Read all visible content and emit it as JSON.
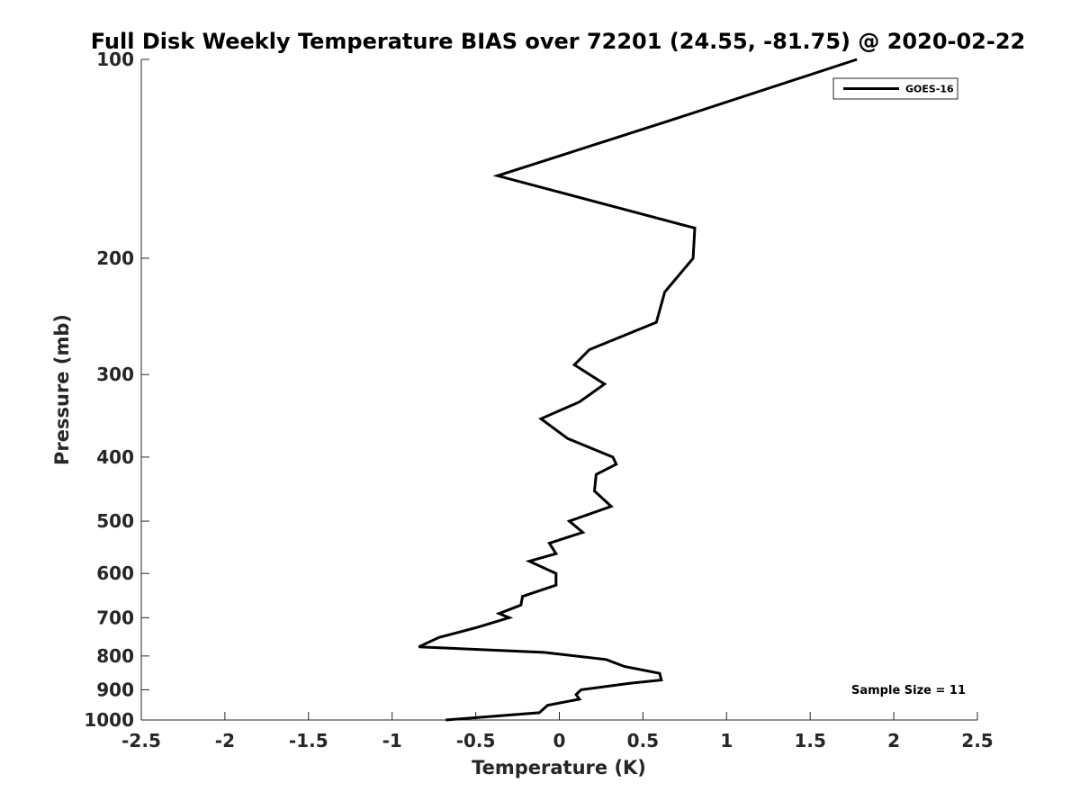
{
  "chart_data": {
    "type": "line",
    "title": "Full Disk Weekly Temperature BIAS over 72201 (24.55, -81.75) @ 2020-02-22",
    "xlabel": "Temperature (K)",
    "ylabel": "Pressure (mb)",
    "xlim": [
      -2.5,
      2.5
    ],
    "ylim": [
      100,
      1000
    ],
    "y_scale": "log",
    "y_reversed": true,
    "grid": false,
    "legend_position": "top-right",
    "x_ticks": [
      -2.5,
      -2,
      -1.5,
      -1,
      -0.5,
      0,
      0.5,
      1,
      1.5,
      2,
      2.5
    ],
    "x_tick_labels": [
      "-2.5",
      "-2",
      "-1.5",
      "-1",
      "-0.5",
      "0",
      "0.5",
      "1",
      "1.5",
      "2",
      "2.5"
    ],
    "y_ticks": [
      100,
      200,
      300,
      400,
      500,
      600,
      700,
      800,
      900,
      1000
    ],
    "y_tick_labels": [
      "100",
      "200",
      "300",
      "400",
      "500",
      "600",
      "700",
      "800",
      "900",
      "1000"
    ],
    "series": [
      {
        "name": "GOES-16",
        "color": "#000000",
        "points": [
          [
            1.78,
            100
          ],
          [
            0.65,
            124
          ],
          [
            -0.37,
            150
          ],
          [
            0.81,
            180
          ],
          [
            0.8,
            200
          ],
          [
            0.63,
            225
          ],
          [
            0.58,
            250
          ],
          [
            0.18,
            275
          ],
          [
            0.09,
            290
          ],
          [
            0.27,
            310
          ],
          [
            0.12,
            330
          ],
          [
            -0.11,
            350
          ],
          [
            0.05,
            375
          ],
          [
            0.32,
            400
          ],
          [
            0.34,
            410
          ],
          [
            0.22,
            425
          ],
          [
            0.21,
            450
          ],
          [
            0.31,
            475
          ],
          [
            0.06,
            500
          ],
          [
            0.14,
            520
          ],
          [
            -0.06,
            540
          ],
          [
            -0.02,
            560
          ],
          [
            -0.18,
            575
          ],
          [
            -0.02,
            600
          ],
          [
            -0.02,
            625
          ],
          [
            -0.22,
            650
          ],
          [
            -0.23,
            670
          ],
          [
            -0.36,
            690
          ],
          [
            -0.3,
            700
          ],
          [
            -0.5,
            725
          ],
          [
            -0.72,
            750
          ],
          [
            -0.84,
            775
          ],
          [
            -0.09,
            790
          ],
          [
            0.28,
            810
          ],
          [
            0.39,
            830
          ],
          [
            0.6,
            850
          ],
          [
            0.61,
            870
          ],
          [
            0.42,
            880
          ],
          [
            0.13,
            900
          ],
          [
            0.1,
            915
          ],
          [
            0.12,
            930
          ],
          [
            -0.07,
            950
          ],
          [
            -0.12,
            975
          ],
          [
            -0.68,
            1000
          ]
        ]
      }
    ],
    "annotation": "Sample Size = 11"
  }
}
